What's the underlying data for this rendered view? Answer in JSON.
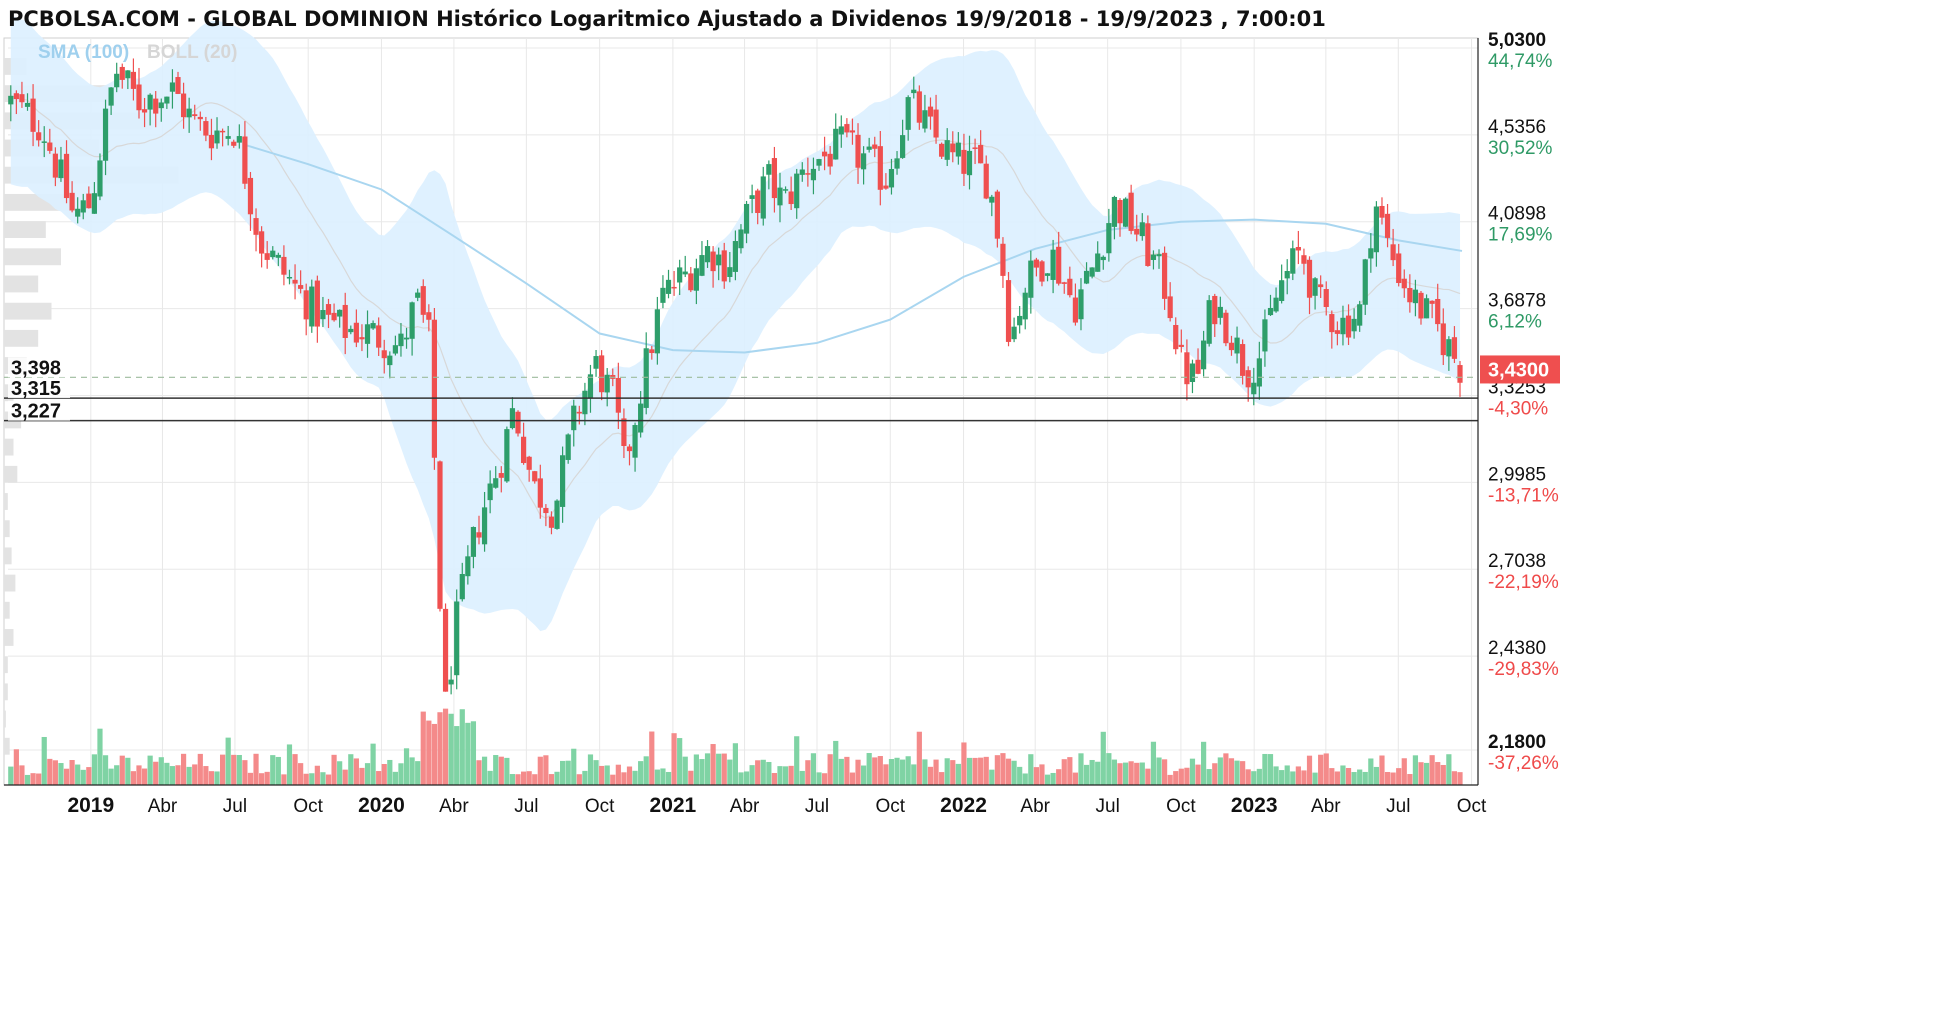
{
  "header": {
    "title": "PCBOLSA.COM - GLOBAL DOMINION Histórico Logaritmico Ajustado a Dividenos 19/9/2018 - 19/9/2023 , 7:00:01",
    "legend_sma": "SMA (100)",
    "legend_boll": "BOLL (20)"
  },
  "colors": {
    "up": "#2e9e6a",
    "down": "#ef4f4f",
    "band": "#dcefff",
    "sma": "#a9d6f0",
    "grid": "#e8e8e8",
    "pct_pos": "#2f9a66",
    "pct_neg": "#ef4a4a"
  },
  "chart_data": {
    "type": "candlestick",
    "scale": "log",
    "x_range": [
      "2018-09-19",
      "2023-09-19"
    ],
    "x_ticks": [
      {
        "date": "2019-01-01",
        "label": "2019",
        "bold": true
      },
      {
        "date": "2019-04-01",
        "label": "Abr"
      },
      {
        "date": "2019-07-01",
        "label": "Jul"
      },
      {
        "date": "2019-10-01",
        "label": "Oct"
      },
      {
        "date": "2020-01-01",
        "label": "2020",
        "bold": true
      },
      {
        "date": "2020-04-01",
        "label": "Abr"
      },
      {
        "date": "2020-07-01",
        "label": "Jul"
      },
      {
        "date": "2020-10-01",
        "label": "Oct"
      },
      {
        "date": "2021-01-01",
        "label": "2021",
        "bold": true
      },
      {
        "date": "2021-04-01",
        "label": "Abr"
      },
      {
        "date": "2021-07-01",
        "label": "Jul"
      },
      {
        "date": "2021-10-01",
        "label": "Oct"
      },
      {
        "date": "2022-01-01",
        "label": "2022",
        "bold": true
      },
      {
        "date": "2022-04-01",
        "label": "Abr"
      },
      {
        "date": "2022-07-01",
        "label": "Jul"
      },
      {
        "date": "2022-10-01",
        "label": "Oct"
      },
      {
        "date": "2023-01-01",
        "label": "2023",
        "bold": true
      },
      {
        "date": "2023-04-01",
        "label": "Abr"
      },
      {
        "date": "2023-07-01",
        "label": "Jul"
      },
      {
        "date": "2023-10-01",
        "label": "Oct"
      }
    ],
    "y_ticks": [
      {
        "value": 5.03,
        "label": "5,0300",
        "pct": "44,74%",
        "bold": true
      },
      {
        "value": 4.5356,
        "label": "4,5356",
        "pct": "30,52%"
      },
      {
        "value": 4.0898,
        "label": "4,0898",
        "pct": "17,69%"
      },
      {
        "value": 3.6878,
        "label": "3,6878",
        "pct": "6,12%"
      },
      {
        "value": 3.3253,
        "label": "3,3253",
        "pct": "-4,30%"
      },
      {
        "value": 2.9985,
        "label": "2,9985",
        "pct": "-13,71%"
      },
      {
        "value": 2.7038,
        "label": "2,7038",
        "pct": "-22,19%"
      },
      {
        "value": 2.438,
        "label": "2,4380",
        "pct": "-29,83%"
      },
      {
        "value": 2.18,
        "label": "2,1800",
        "pct": "-37,26%",
        "bold": true
      }
    ],
    "last_price": {
      "value": 3.43,
      "label": "3,4300"
    },
    "levels": [
      {
        "value": 3.398,
        "label": "3,398",
        "style": "dashed"
      },
      {
        "value": 3.315,
        "label": "3,315",
        "style": "solid"
      },
      {
        "value": 3.227,
        "label": "3,227",
        "style": "solid"
      }
    ],
    "price_anchors": [
      [
        "2018-09-21",
        4.72
      ],
      [
        "2018-11-01",
        4.58
      ],
      [
        "2018-12-10",
        4.12
      ],
      [
        "2019-01-01",
        4.18
      ],
      [
        "2019-02-01",
        4.9
      ],
      [
        "2019-03-01",
        4.72
      ],
      [
        "2019-04-15",
        4.78
      ],
      [
        "2019-05-10",
        4.6
      ],
      [
        "2019-06-01",
        4.55
      ],
      [
        "2019-07-01",
        4.57
      ],
      [
        "2019-08-01",
        4.0
      ],
      [
        "2019-08-20",
        3.9
      ],
      [
        "2019-09-15",
        3.78
      ],
      [
        "2019-10-20",
        3.64
      ],
      [
        "2019-11-15",
        3.6
      ],
      [
        "2019-12-20",
        3.58
      ],
      [
        "2020-01-25",
        3.52
      ],
      [
        "2020-02-14",
        3.72
      ],
      [
        "2020-03-01",
        3.55
      ],
      [
        "2020-03-12",
        2.76
      ],
      [
        "2020-03-20",
        2.27
      ],
      [
        "2020-04-05",
        2.55
      ],
      [
        "2020-05-01",
        2.85
      ],
      [
        "2020-06-01",
        3.1
      ],
      [
        "2020-06-15",
        3.28
      ],
      [
        "2020-07-10",
        2.98
      ],
      [
        "2020-08-05",
        2.9
      ],
      [
        "2020-09-01",
        3.25
      ],
      [
        "2020-09-25",
        3.45
      ],
      [
        "2020-10-20",
        3.3
      ],
      [
        "2020-11-01",
        3.05
      ],
      [
        "2020-11-25",
        3.4
      ],
      [
        "2020-12-20",
        3.75
      ],
      [
        "2021-01-20",
        3.85
      ],
      [
        "2021-02-15",
        3.96
      ],
      [
        "2021-03-10",
        3.88
      ],
      [
        "2021-04-05",
        4.12
      ],
      [
        "2021-05-01",
        4.3
      ],
      [
        "2021-05-20",
        4.18
      ],
      [
        "2021-06-20",
        4.38
      ],
      [
        "2021-07-10",
        4.42
      ],
      [
        "2021-08-01",
        4.48
      ],
      [
        "2021-09-01",
        4.4
      ],
      [
        "2021-09-25",
        4.3
      ],
      [
        "2021-10-25",
        4.72
      ],
      [
        "2021-11-20",
        4.55
      ],
      [
        "2021-12-20",
        4.4
      ],
      [
        "2022-01-15",
        4.38
      ],
      [
        "2022-02-01",
        4.3
      ],
      [
        "2022-02-15",
        4.0
      ],
      [
        "2022-03-01",
        3.55
      ],
      [
        "2022-03-20",
        3.8
      ],
      [
        "2022-04-20",
        3.95
      ],
      [
        "2022-05-20",
        3.7
      ],
      [
        "2022-06-10",
        3.85
      ],
      [
        "2022-07-10",
        4.18
      ],
      [
        "2022-08-01",
        4.08
      ],
      [
        "2022-08-25",
        3.92
      ],
      [
        "2022-09-15",
        3.75
      ],
      [
        "2022-10-01",
        3.45
      ],
      [
        "2022-10-20",
        3.38
      ],
      [
        "2022-11-10",
        3.72
      ],
      [
        "2022-12-01",
        3.6
      ],
      [
        "2022-12-22",
        3.42
      ],
      [
        "2023-01-10",
        3.5
      ],
      [
        "2023-02-01",
        3.78
      ],
      [
        "2023-03-01",
        3.95
      ],
      [
        "2023-03-20",
        3.72
      ],
      [
        "2023-04-20",
        3.62
      ],
      [
        "2023-05-15",
        3.68
      ],
      [
        "2023-06-01",
        4.2
      ],
      [
        "2023-06-20",
        3.95
      ],
      [
        "2023-07-15",
        3.75
      ],
      [
        "2023-08-15",
        3.62
      ],
      [
        "2023-09-19",
        3.43
      ]
    ],
    "sma_anchors": [
      [
        "2019-07-15",
        4.48
      ],
      [
        "2019-10-01",
        4.38
      ],
      [
        "2020-01-01",
        4.25
      ],
      [
        "2020-04-01",
        4.02
      ],
      [
        "2020-07-01",
        3.8
      ],
      [
        "2020-10-01",
        3.58
      ],
      [
        "2021-01-01",
        3.51
      ],
      [
        "2021-04-01",
        3.5
      ],
      [
        "2021-07-01",
        3.54
      ],
      [
        "2021-10-01",
        3.64
      ],
      [
        "2022-01-01",
        3.83
      ],
      [
        "2022-04-01",
        3.96
      ],
      [
        "2022-07-01",
        4.05
      ],
      [
        "2022-10-01",
        4.09
      ],
      [
        "2023-01-01",
        4.1
      ],
      [
        "2023-04-01",
        4.08
      ],
      [
        "2023-07-01",
        4.0
      ],
      [
        "2023-09-19",
        3.95
      ]
    ],
    "band_half_width_anchors": [
      [
        "2018-10-01",
        0.1
      ],
      [
        "2019-03-01",
        0.08
      ],
      [
        "2019-08-15",
        0.12
      ],
      [
        "2020-01-01",
        0.09
      ],
      [
        "2020-03-20",
        0.24
      ],
      [
        "2020-06-01",
        0.16
      ],
      [
        "2020-10-01",
        0.08
      ],
      [
        "2021-03-01",
        0.1
      ],
      [
        "2021-08-01",
        0.06
      ],
      [
        "2022-03-01",
        0.13
      ],
      [
        "2022-07-01",
        0.08
      ],
      [
        "2022-10-20",
        0.1
      ],
      [
        "2023-02-01",
        0.07
      ],
      [
        "2023-06-15",
        0.08
      ],
      [
        "2023-09-19",
        0.1
      ]
    ],
    "volume_profile": [
      0.12,
      0.55,
      0.78,
      0.5,
      0.92,
      0.35,
      0.22,
      0.3,
      0.18,
      0.25,
      0.18,
      0.12,
      0.05,
      0.09,
      0.05,
      0.07,
      0.02,
      0.03,
      0.04,
      0.06,
      0.03,
      0.05,
      0.02,
      0.02,
      0.01,
      0.03
    ]
  }
}
